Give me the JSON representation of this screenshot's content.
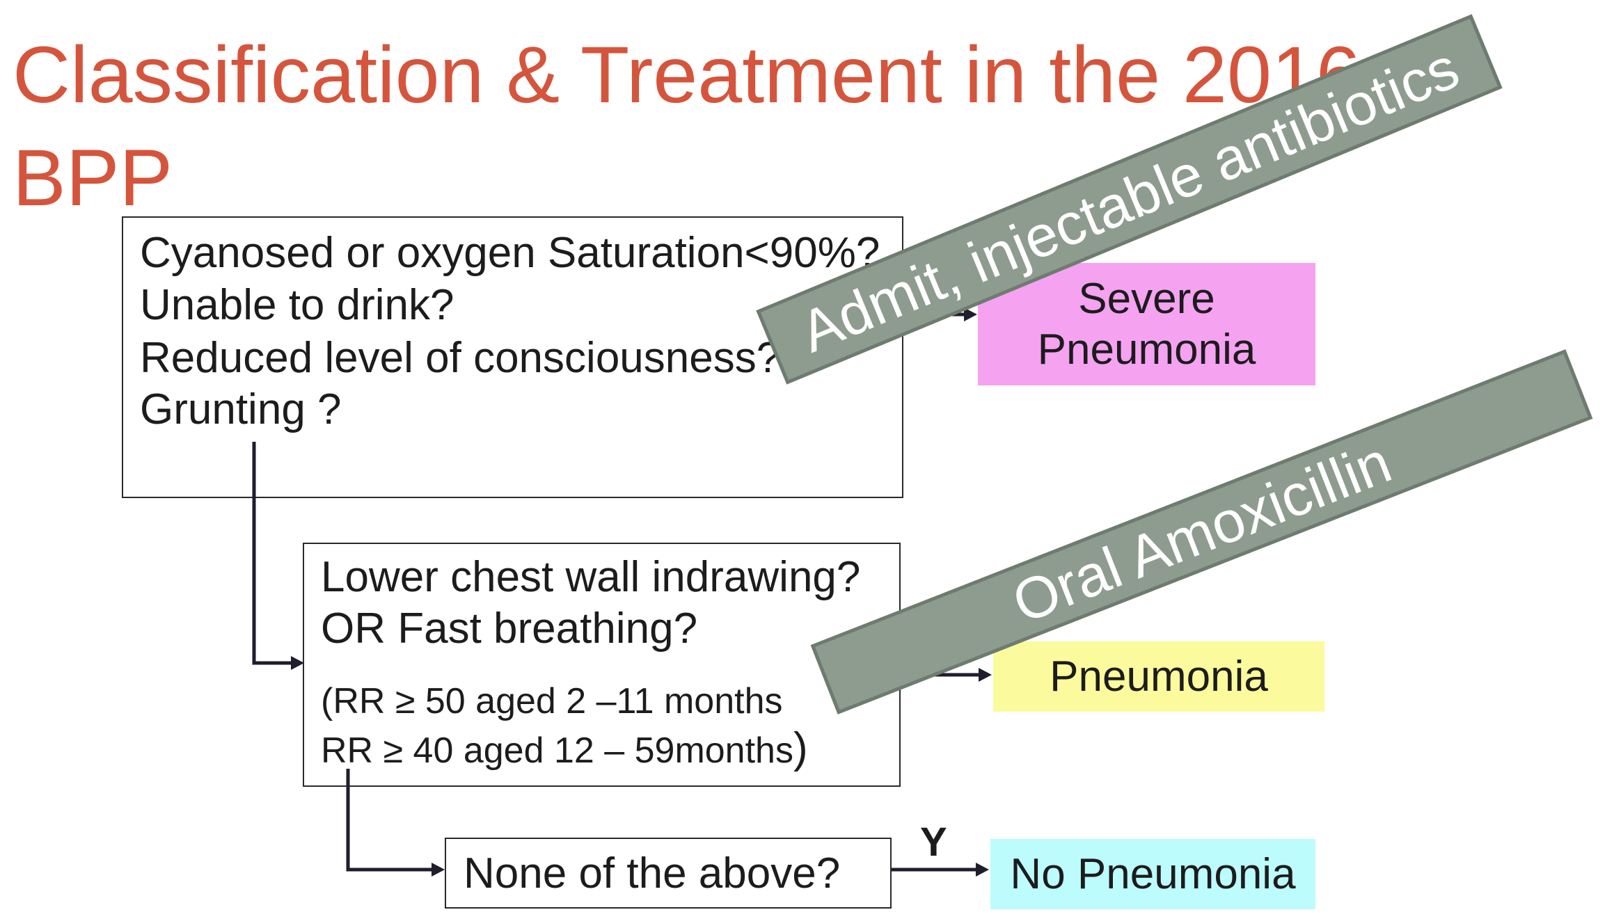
{
  "slide": {
    "title_line1": "Classification & Treatment in the 2016",
    "title_line2": "BPP"
  },
  "colors": {
    "title": "#d5553c",
    "banner": "#8e9c8f",
    "banner_border": "#6e7c70",
    "banner_text": "#ffffff",
    "severe_box": "#f5a2f1",
    "pneumonia_box": "#fbfa9d",
    "no_pneumonia_box": "#bdfcfc",
    "connector": "#1e1e2c"
  },
  "flowchart": {
    "box_danger": {
      "lines": [
        "Cyanosed or oxygen Saturation<90%?",
        "Unable to drink?",
        "Reduced level of consciousness?",
        "Grunting ?"
      ]
    },
    "box_chest": {
      "line1": "Lower chest wall indrawing?",
      "line2": "OR Fast breathing?",
      "line3": "(RR ≥ 50 aged 2 –11 months",
      "line4": "RR ≥ 40 aged 12 – 59months",
      "line4_paren": ")"
    },
    "box_none": {
      "text": "None of the above?"
    },
    "arrow_label_yes": "Y",
    "results": {
      "severe": {
        "line1": "Severe",
        "line2": "Pneumonia"
      },
      "pneumonia": {
        "text": "Pneumonia"
      },
      "no_pneumonia": {
        "text": "No Pneumonia"
      }
    }
  },
  "treatment_banners": [
    {
      "text": "Admit, injectable antibiotics"
    },
    {
      "text": "Oral Amoxicillin"
    }
  ]
}
